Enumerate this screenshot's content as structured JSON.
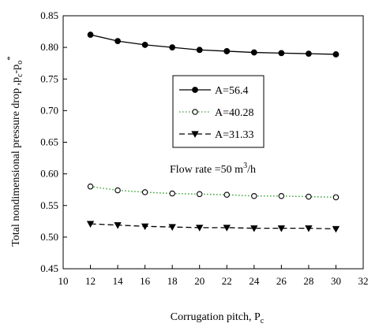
{
  "chart_data": {
    "type": "line",
    "xlabel": "Corrugation pitch, P",
    "xlabel_sub": "c",
    "ylabel": "Total nondimensional pressure drop ,p",
    "ylabel_sub1": "c",
    "ylabel_mid": "-p",
    "ylabel_sub2": "o",
    "ylabel_sup": "*",
    "annotation": {
      "text": "Flow rate =50 m",
      "sup": "3",
      "tail": "/h"
    },
    "xlim": [
      10,
      32
    ],
    "ylim": [
      0.45,
      0.85
    ],
    "xticks": [
      10,
      12,
      14,
      16,
      18,
      20,
      22,
      24,
      26,
      28,
      30,
      32
    ],
    "yticks": [
      "0.45",
      "0.50",
      "0.55",
      "0.60",
      "0.65",
      "0.70",
      "0.75",
      "0.80",
      "0.85"
    ],
    "grid": false,
    "legend_position": "center-right",
    "series": [
      {
        "name": "A=56.4",
        "marker": "filled-circle",
        "line": "solid",
        "color": "#000000",
        "x": [
          12,
          14,
          16,
          18,
          20,
          22,
          24,
          26,
          28,
          30
        ],
        "y": [
          0.82,
          0.81,
          0.804,
          0.8,
          0.796,
          0.794,
          0.792,
          0.791,
          0.79,
          0.789
        ]
      },
      {
        "name": "A=40.28",
        "marker": "open-circle",
        "line": "dotted",
        "color": "#2e9d2e",
        "x": [
          12,
          14,
          16,
          18,
          20,
          22,
          24,
          26,
          28,
          30
        ],
        "y": [
          0.58,
          0.574,
          0.571,
          0.569,
          0.568,
          0.567,
          0.565,
          0.565,
          0.564,
          0.563
        ]
      },
      {
        "name": "A=31.33",
        "marker": "filled-triangle-down",
        "line": "dashed",
        "color": "#000000",
        "x": [
          12,
          14,
          16,
          18,
          20,
          22,
          24,
          26,
          28,
          30
        ],
        "y": [
          0.521,
          0.519,
          0.517,
          0.516,
          0.515,
          0.515,
          0.514,
          0.514,
          0.514,
          0.513
        ]
      }
    ]
  }
}
